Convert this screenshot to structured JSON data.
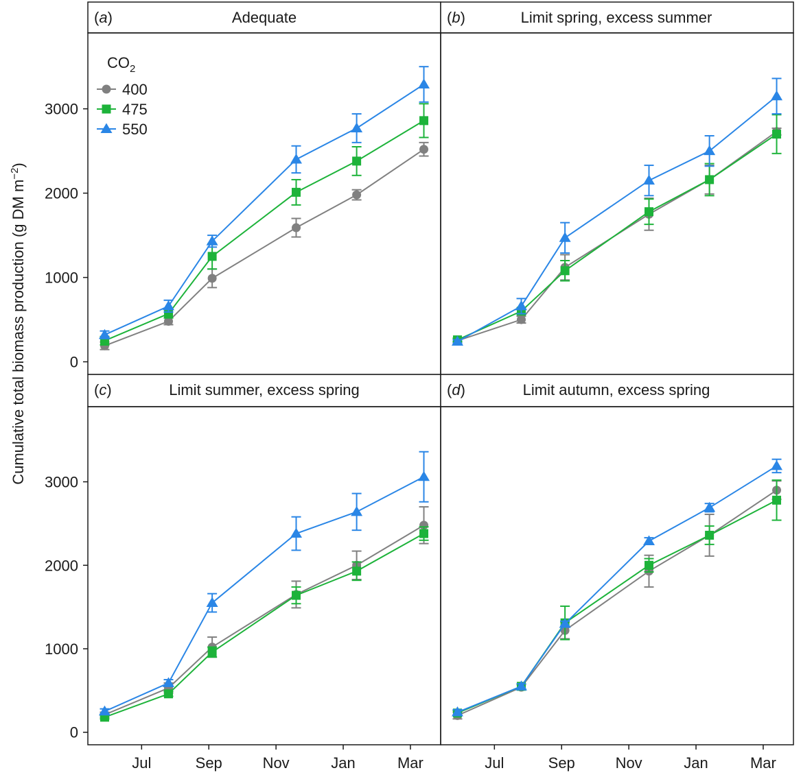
{
  "figure": {
    "y_axis_label": "Cumulative total biomass production (g DM m",
    "y_axis_label_sup": "−2",
    "y_axis_label_end": ")",
    "x_ticks": [
      "Jul",
      "Sep",
      "Nov",
      "Jan",
      "Mar"
    ],
    "y_ticks": [
      "0",
      "1000",
      "2000",
      "3000"
    ]
  },
  "legend": {
    "title": "CO",
    "title_sub": "2",
    "entries": [
      {
        "label": "400",
        "color": "#808080",
        "marker": "circle"
      },
      {
        "label": "475",
        "color": "#1db33a",
        "marker": "square"
      },
      {
        "label": "550",
        "color": "#2a86e6",
        "marker": "triangle"
      }
    ]
  },
  "colors": {
    "400": "#808080",
    "475": "#1db33a",
    "550": "#2a86e6"
  },
  "chart_data": [
    {
      "type": "line",
      "panel_letter": "a",
      "title": "Adequate",
      "x": [
        "Jun",
        "Aug",
        "Sep",
        "Dec",
        "Feb",
        "Apr"
      ],
      "x_months": [
        5.9,
        7.8,
        9.1,
        11.6,
        13.4,
        15.4
      ],
      "ylim": [
        -150,
        3900
      ],
      "series": [
        {
          "name": "400",
          "values": [
            190,
            480,
            990,
            1590,
            1980,
            2520
          ],
          "errors": [
            45,
            40,
            110,
            110,
            60,
            80
          ]
        },
        {
          "name": "475",
          "values": [
            250,
            570,
            1250,
            2010,
            2380,
            2860
          ],
          "errors": [
            50,
            50,
            150,
            150,
            170,
            200
          ]
        },
        {
          "name": "550",
          "values": [
            320,
            660,
            1430,
            2400,
            2770,
            3290
          ],
          "errors": [
            45,
            70,
            70,
            160,
            170,
            210
          ]
        }
      ]
    },
    {
      "type": "line",
      "panel_letter": "b",
      "title": "Limit spring, excess summer",
      "x": [
        "Jun",
        "Aug",
        "Sep",
        "Dec",
        "Feb",
        "Apr"
      ],
      "x_months": [
        5.9,
        7.8,
        9.1,
        11.6,
        13.4,
        15.4
      ],
      "ylim": [
        -150,
        3900
      ],
      "series": [
        {
          "name": "400",
          "values": [
            250,
            500,
            1120,
            1750,
            2160,
            2730
          ],
          "errors": [
            20,
            40,
            150,
            190,
            170,
            40
          ]
        },
        {
          "name": "475",
          "values": [
            260,
            600,
            1080,
            1780,
            2160,
            2700
          ],
          "errors": [
            20,
            40,
            120,
            150,
            190,
            230
          ]
        },
        {
          "name": "550",
          "values": [
            240,
            660,
            1470,
            2150,
            2500,
            3150
          ],
          "errors": [
            20,
            90,
            180,
            180,
            180,
            210
          ]
        }
      ]
    },
    {
      "type": "line",
      "panel_letter": "c",
      "title": "Limit summer, excess spring",
      "x": [
        "Jun",
        "Aug",
        "Sep",
        "Dec",
        "Feb",
        "Apr"
      ],
      "x_months": [
        5.9,
        7.8,
        9.1,
        11.6,
        13.4,
        15.4
      ],
      "ylim": [
        -150,
        3900
      ],
      "series": [
        {
          "name": "400",
          "values": [
            210,
            530,
            1020,
            1650,
            2000,
            2480
          ],
          "errors": [
            30,
            60,
            120,
            160,
            170,
            220
          ]
        },
        {
          "name": "475",
          "values": [
            180,
            460,
            960,
            1640,
            1930,
            2380
          ],
          "errors": [
            20,
            30,
            60,
            100,
            110,
            80
          ]
        },
        {
          "name": "550",
          "values": [
            250,
            590,
            1550,
            2380,
            2640,
            3060
          ],
          "errors": [
            30,
            40,
            110,
            200,
            220,
            300
          ]
        }
      ]
    },
    {
      "type": "line",
      "panel_letter": "d",
      "title": "Limit autumn, excess spring",
      "x": [
        "Jun",
        "Aug",
        "Sep",
        "Dec",
        "Feb",
        "Apr"
      ],
      "x_months": [
        5.9,
        7.8,
        9.1,
        11.6,
        13.4,
        15.4
      ],
      "ylim": [
        -150,
        3900
      ],
      "series": [
        {
          "name": "400",
          "values": [
            200,
            540,
            1220,
            1930,
            2360,
            2900
          ],
          "errors": [
            40,
            30,
            100,
            190,
            250,
            110
          ]
        },
        {
          "name": "475",
          "values": [
            230,
            550,
            1310,
            2000,
            2360,
            2780
          ],
          "errors": [
            30,
            30,
            200,
            80,
            110,
            240
          ]
        },
        {
          "name": "550",
          "values": [
            240,
            550,
            1300,
            2290,
            2690,
            3190
          ],
          "errors": [
            30,
            30,
            30,
            40,
            50,
            80
          ]
        }
      ]
    }
  ]
}
